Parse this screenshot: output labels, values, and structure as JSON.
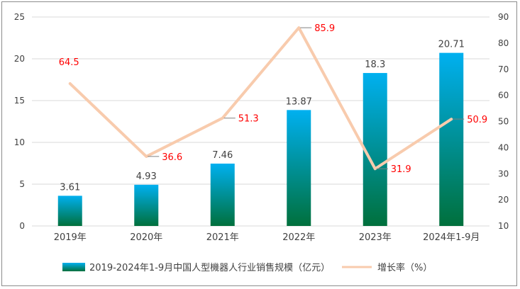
{
  "chart_data": {
    "type": "bar+line",
    "categories": [
      "2019年",
      "2020年",
      "2021年",
      "2022年",
      "2023年",
      "2024年1-9月"
    ],
    "series": [
      {
        "name": "2019-2024年1-9月中国人型機器人行业销售规模（亿元）",
        "type": "bar",
        "axis": "left",
        "values": [
          3.61,
          4.93,
          7.46,
          13.87,
          18.3,
          20.71
        ],
        "labels": [
          "3.61",
          "4.93",
          "7.46",
          "13.87",
          "18.3",
          "20.71"
        ]
      },
      {
        "name": "增长率（%）",
        "type": "line",
        "axis": "right",
        "values": [
          64.5,
          36.6,
          51.3,
          85.9,
          31.9,
          50.9
        ],
        "labels": [
          "64.5",
          "36.6",
          "51.3",
          "85.9",
          "31.9",
          "50.9"
        ]
      }
    ],
    "y_left": {
      "ylim": [
        0,
        25
      ],
      "ticks": [
        "0",
        "5",
        "10",
        "15",
        "20",
        "25"
      ]
    },
    "y_right": {
      "ylim": [
        10,
        90
      ],
      "ticks": [
        "10",
        "20",
        "30",
        "40",
        "50",
        "60",
        "70",
        "80",
        "90"
      ]
    },
    "legend_position": "bottom",
    "grid": true,
    "colors": {
      "bar_top": "#00b0f0",
      "bar_bottom": "#00703c",
      "line": "#f8cbad",
      "rate_label": "#ff0000",
      "grid": "#d9d9d9",
      "leader": "#808080"
    }
  }
}
